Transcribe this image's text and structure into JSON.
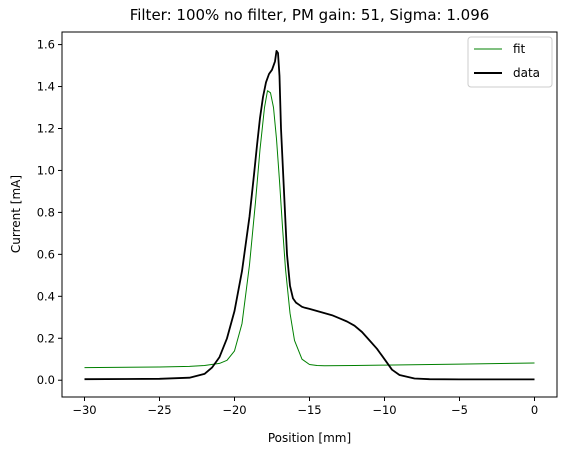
{
  "chart_data": {
    "type": "line",
    "title": "Filter: 100% no filter, PM gain: 51, Sigma: 1.096",
    "xlabel": "Position [mm]",
    "ylabel": "Current [mA]",
    "xlim": [
      -31.5,
      1.5
    ],
    "ylim": [
      -0.08,
      1.66
    ],
    "xticks": [
      -30,
      -25,
      -20,
      -15,
      -10,
      -5,
      0
    ],
    "xtick_labels": [
      "−30",
      "−25",
      "−20",
      "−15",
      "−10",
      "−5",
      "0"
    ],
    "yticks": [
      0.0,
      0.2,
      0.4,
      0.6,
      0.8,
      1.0,
      1.2,
      1.4,
      1.6
    ],
    "ytick_labels": [
      "0.0",
      "0.2",
      "0.4",
      "0.6",
      "0.8",
      "1.0",
      "1.2",
      "1.4",
      "1.6"
    ],
    "grid": false,
    "legend": "top-right",
    "series": [
      {
        "name": "fit",
        "color": "#008000",
        "x": [
          -30,
          -25,
          -23,
          -22,
          -21,
          -20.5,
          -20,
          -19.5,
          -19,
          -18.6,
          -18.3,
          -18,
          -17.8,
          -17.6,
          -17.4,
          -17.2,
          -17.0,
          -16.8,
          -16.6,
          -16.3,
          -16,
          -15.5,
          -15,
          -14.5,
          -14,
          -12,
          -10,
          -5,
          0
        ],
        "y": [
          0.06,
          0.063,
          0.066,
          0.07,
          0.08,
          0.095,
          0.14,
          0.27,
          0.55,
          0.85,
          1.1,
          1.3,
          1.38,
          1.37,
          1.3,
          1.15,
          0.95,
          0.73,
          0.53,
          0.32,
          0.19,
          0.1,
          0.075,
          0.07,
          0.069,
          0.07,
          0.072,
          0.077,
          0.082
        ]
      },
      {
        "name": "data",
        "color": "#000000",
        "x": [
          -30,
          -25,
          -23,
          -22,
          -21.5,
          -21,
          -20.5,
          -20,
          -19.5,
          -19,
          -18.7,
          -18.5,
          -18.3,
          -18.1,
          -17.9,
          -17.7,
          -17.5,
          -17.3,
          -17.2,
          -17.1,
          -17.0,
          -16.9,
          -16.7,
          -16.5,
          -16.3,
          -16.1,
          -15.9,
          -15.7,
          -15.5,
          -15.3,
          -15,
          -14.5,
          -14,
          -13.5,
          -13,
          -12.5,
          -12,
          -11.5,
          -11,
          -10.5,
          -10,
          -9.5,
          -9,
          -8,
          -7,
          -5,
          0
        ],
        "y": [
          0.005,
          0.007,
          0.012,
          0.03,
          0.06,
          0.11,
          0.2,
          0.33,
          0.52,
          0.78,
          0.98,
          1.12,
          1.25,
          1.35,
          1.42,
          1.46,
          1.48,
          1.52,
          1.57,
          1.56,
          1.45,
          1.2,
          0.9,
          0.6,
          0.45,
          0.39,
          0.37,
          0.36,
          0.35,
          0.345,
          0.34,
          0.33,
          0.32,
          0.31,
          0.295,
          0.28,
          0.26,
          0.23,
          0.19,
          0.15,
          0.1,
          0.05,
          0.025,
          0.008,
          0.005,
          0.004,
          0.004
        ]
      }
    ]
  }
}
